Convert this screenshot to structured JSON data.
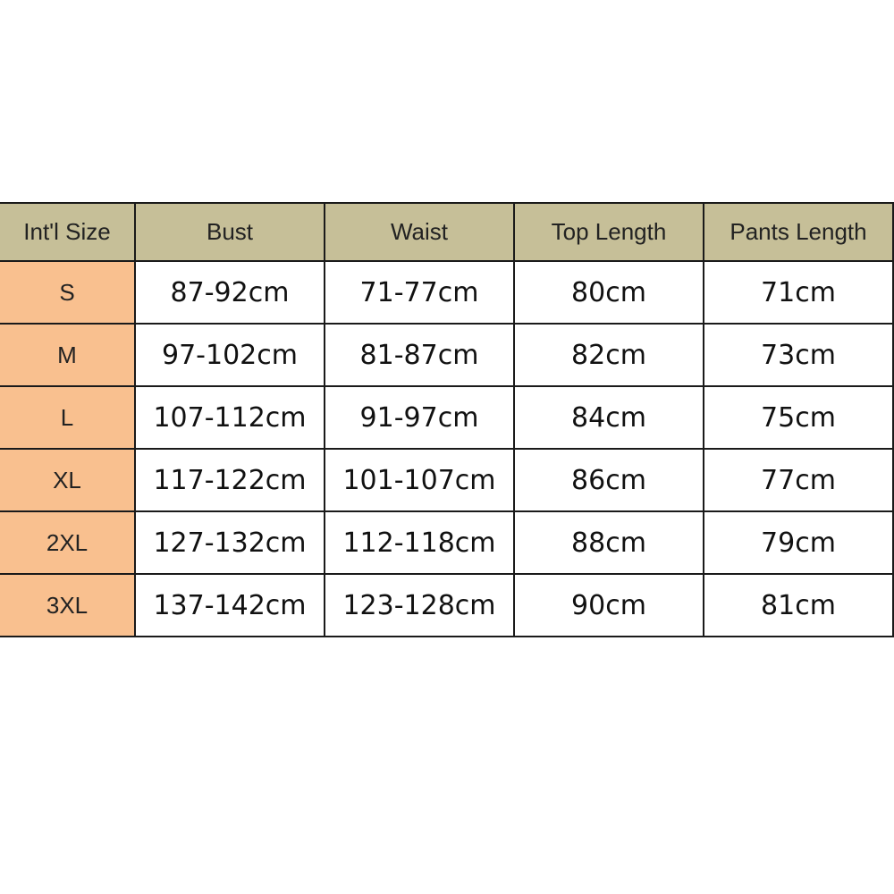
{
  "colors": {
    "header_bg": "#c6bf98",
    "size_col_bg": "#f9c08f"
  },
  "headers": [
    "Int'l Size",
    "Bust",
    "Waist",
    "Top Length",
    "Pants Length"
  ],
  "rows": [
    [
      "S",
      "87-92cm",
      "71-77cm",
      "80cm",
      "71cm"
    ],
    [
      "M",
      "97-102cm",
      "81-87cm",
      "82cm",
      "73cm"
    ],
    [
      "L",
      "107-112cm",
      "91-97cm",
      "84cm",
      "75cm"
    ],
    [
      "XL",
      "117-122cm",
      "101-107cm",
      "86cm",
      "77cm"
    ],
    [
      "2XL",
      "127-132cm",
      "112-118cm",
      "88cm",
      "79cm"
    ],
    [
      "3XL",
      "137-142cm",
      "123-128cm",
      "90cm",
      "81cm"
    ]
  ]
}
